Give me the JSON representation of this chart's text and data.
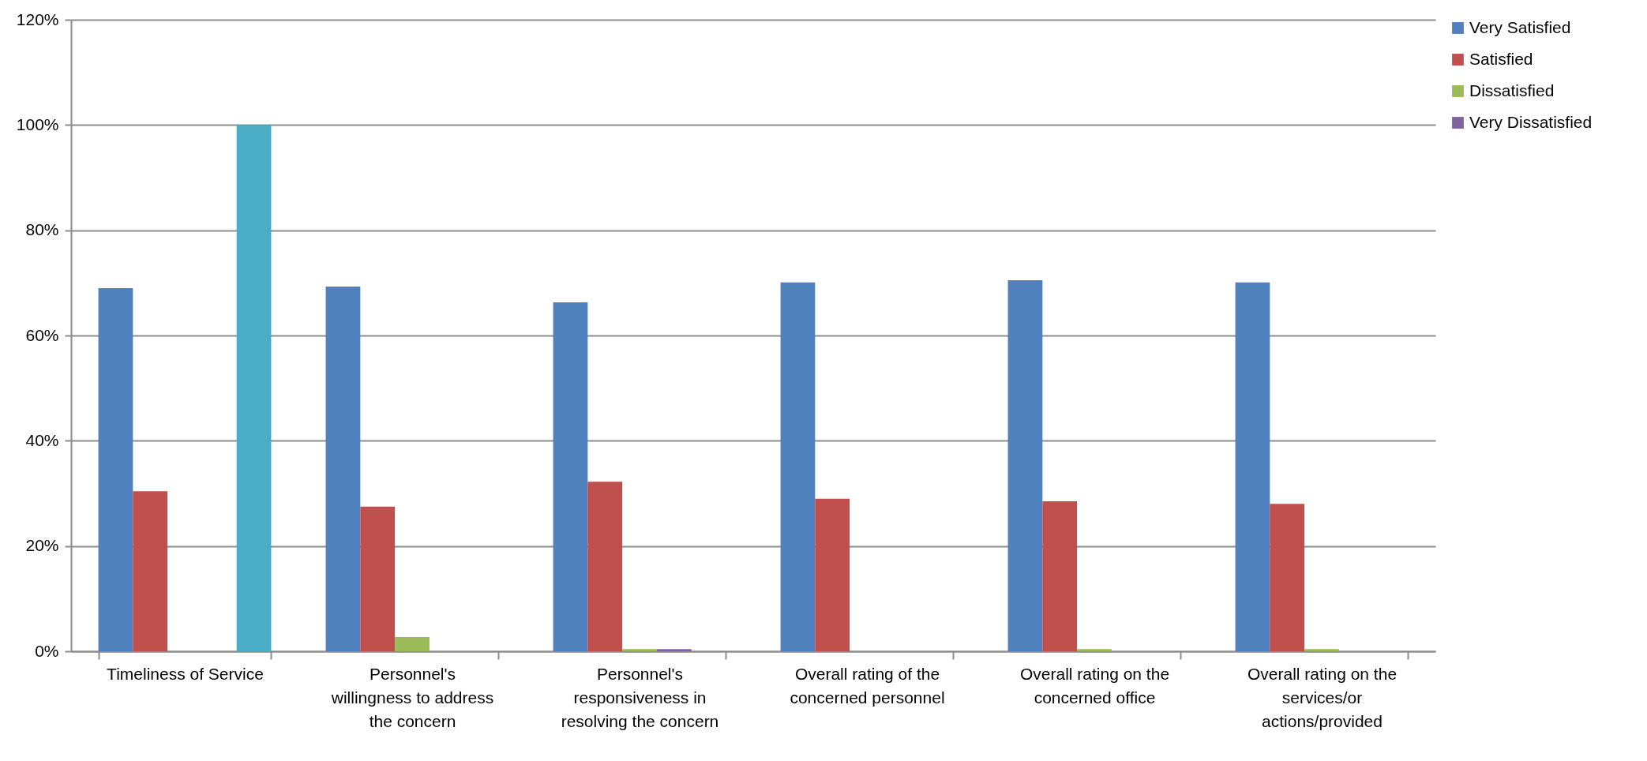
{
  "chart_data": {
    "type": "bar",
    "categories": [
      "Timeliness of Service",
      "Personnel's willingness to address the concern",
      "Personnel's responsiveness in resolving the concern",
      "Overall rating of the concerned personnel",
      "Overall rating on the concerned office",
      "Overall rating on the services/or actions/provided"
    ],
    "series": [
      {
        "name": "Very Satisfied",
        "color": "#4f81bd",
        "values": [
          69,
          69.3,
          66.3,
          70.1,
          70.5,
          70.1
        ]
      },
      {
        "name": "Satisfied",
        "color": "#c0504d",
        "values": [
          30.4,
          27.5,
          32.2,
          29,
          28.5,
          28
        ]
      },
      {
        "name": "Dissatisfied",
        "color": "#9bbb59",
        "values": [
          0,
          2.7,
          0.4,
          0,
          0.4,
          0.4
        ]
      },
      {
        "name": "Very Dissatisfied",
        "color": "#8064a2",
        "values": [
          0,
          0,
          0.4,
          0,
          0,
          0
        ]
      },
      {
        "color": "#4bacc6",
        "values": [
          100,
          null,
          null,
          null,
          null,
          null
        ]
      }
    ],
    "ylim": [
      0,
      120
    ],
    "yticks": [
      {
        "value": 0,
        "label": "0%"
      },
      {
        "value": 20,
        "label": "20%"
      },
      {
        "value": 40,
        "label": "40%"
      },
      {
        "value": 60,
        "label": "60%"
      },
      {
        "value": 80,
        "label": "80%"
      },
      {
        "value": 100,
        "label": "100%"
      },
      {
        "value": 120,
        "label": "120%"
      }
    ],
    "grid": "y",
    "legend": "right"
  }
}
